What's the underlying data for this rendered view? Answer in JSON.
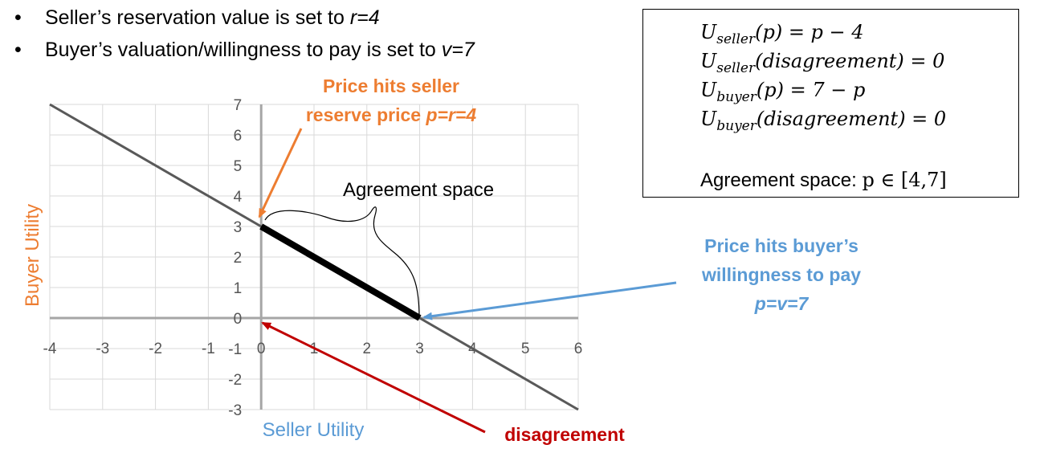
{
  "bullets": [
    {
      "text": "Seller’s reservation value is set to ",
      "var": "r=4"
    },
    {
      "text": "Buyer’s valuation/willingness to pay is set to ",
      "var": "v=7"
    }
  ],
  "bullet_glyph": "•",
  "formulas": {
    "u": "U",
    "l1": {
      "sub": "seller",
      "rest": "(p) = p − 4"
    },
    "l2": {
      "sub": "seller",
      "rest": "(disagreement) = 0"
    },
    "l3": {
      "sub": "buyer",
      "rest": "(p) = 7 − p"
    },
    "l4": {
      "sub": "buyer",
      "rest": "(disagreement) = 0"
    },
    "agreement_label": "Agreement space: ",
    "agreement_math": "p ∈ [4,7]"
  },
  "annotations": {
    "seller_reserve_line1": "Price hits seller",
    "seller_reserve_line2": "reserve price ",
    "seller_reserve_var": "p=r=4",
    "buyer_wtp_line1": "Price hits buyer’s",
    "buyer_wtp_line2": "willingness to pay",
    "buyer_wtp_var": "p=v=7",
    "disagreement": "disagreement",
    "agreement_space": "Agreement space"
  },
  "colors": {
    "orange": "#ED7D31",
    "blue": "#5B9BD5",
    "red": "#C00000",
    "line": "#595959",
    "segment": "#000000",
    "grid": "#D9D9D9",
    "axis": "#A6A6A6"
  },
  "chart_data": {
    "type": "line",
    "xlabel": "Seller Utility",
    "ylabel": "Buyer Utility",
    "xlim": [
      -4,
      6
    ],
    "ylim": [
      -3,
      7
    ],
    "x_ticks": [
      "-4",
      "-3",
      "-2",
      "-1",
      "0",
      "1",
      "2",
      "3",
      "4",
      "5",
      "6"
    ],
    "y_ticks": [
      "-3",
      "-2",
      "-1",
      "0",
      "1",
      "2",
      "3",
      "4",
      "5",
      "6",
      "7"
    ],
    "grid": true,
    "series": [
      {
        "points": [
          [
            -4,
            7
          ],
          [
            6,
            -3
          ]
        ]
      },
      {
        "points": [
          [
            0,
            3
          ],
          [
            3,
            0
          ]
        ]
      }
    ]
  }
}
